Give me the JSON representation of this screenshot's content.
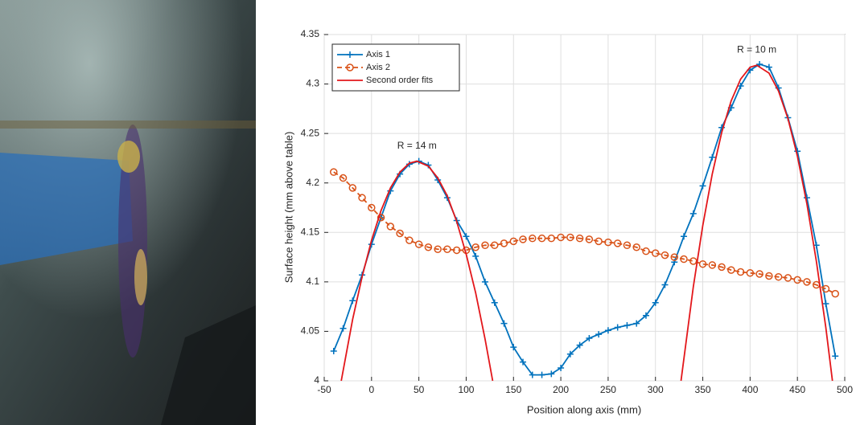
{
  "chart_data": {
    "type": "line",
    "xlabel": "Position along axis (mm)",
    "ylabel": "Surface height (mm above table)",
    "xlim": [
      -50,
      500
    ],
    "xticks": [
      -50,
      0,
      50,
      100,
      150,
      200,
      250,
      300,
      350,
      400,
      450,
      500
    ],
    "ylim": [
      4,
      4.35
    ],
    "yticks": [
      4,
      4.05,
      4.1,
      4.15,
      4.2,
      4.25,
      4.3,
      4.35
    ],
    "grid": true,
    "legend": "upper left",
    "annotations": [
      "R = 14 m",
      "R = 10 m"
    ],
    "series": [
      {
        "name": "Axis 1",
        "color": "#0072bd",
        "marker": "plus",
        "x": [
          -40,
          -30,
          -20,
          -10,
          0,
          10,
          20,
          30,
          40,
          50,
          60,
          70,
          80,
          90,
          100,
          110,
          120,
          130,
          140,
          150,
          160,
          170,
          180,
          190,
          200,
          210,
          220,
          230,
          240,
          250,
          260,
          270,
          280,
          290,
          300,
          310,
          320,
          330,
          340,
          350,
          360,
          370,
          380,
          390,
          400,
          410,
          420,
          430,
          440,
          450,
          460,
          470,
          480,
          490
        ],
        "values": [
          4.03,
          4.053,
          4.081,
          4.107,
          4.138,
          4.165,
          4.192,
          4.209,
          4.219,
          4.222,
          4.218,
          4.203,
          4.185,
          4.162,
          4.146,
          4.126,
          4.1,
          4.079,
          4.058,
          4.034,
          4.019,
          4.006,
          4.006,
          4.007,
          4.013,
          4.027,
          4.036,
          4.043,
          4.047,
          4.051,
          4.054,
          4.056,
          4.058,
          4.066,
          4.079,
          4.097,
          4.12,
          4.146,
          4.169,
          4.197,
          4.226,
          4.256,
          4.276,
          4.298,
          4.314,
          4.32,
          4.317,
          4.296,
          4.266,
          4.232,
          4.185,
          4.137,
          4.078,
          4.025
        ]
      },
      {
        "name": "Axis 2",
        "color": "#d95319",
        "marker": "circle",
        "dashed": true,
        "x": [
          -40,
          -30,
          -20,
          -10,
          0,
          10,
          20,
          30,
          40,
          50,
          60,
          70,
          80,
          90,
          100,
          110,
          120,
          130,
          140,
          150,
          160,
          170,
          180,
          190,
          200,
          210,
          220,
          230,
          240,
          250,
          260,
          270,
          280,
          290,
          300,
          310,
          320,
          330,
          340,
          350,
          360,
          370,
          380,
          390,
          400,
          410,
          420,
          430,
          440,
          450,
          460,
          470,
          480,
          490
        ],
        "values": [
          4.211,
          4.205,
          4.195,
          4.185,
          4.175,
          4.165,
          4.156,
          4.149,
          4.142,
          4.138,
          4.135,
          4.133,
          4.133,
          4.132,
          4.132,
          4.135,
          4.137,
          4.137,
          4.139,
          4.141,
          4.143,
          4.144,
          4.144,
          4.144,
          4.145,
          4.145,
          4.144,
          4.143,
          4.141,
          4.14,
          4.139,
          4.137,
          4.135,
          4.131,
          4.129,
          4.127,
          4.125,
          4.123,
          4.121,
          4.118,
          4.117,
          4.115,
          4.112,
          4.11,
          4.109,
          4.108,
          4.106,
          4.105,
          4.104,
          4.102,
          4.1,
          4.097,
          4.093,
          4.088
        ]
      },
      {
        "name": "Second order fits",
        "color": "#e3171b",
        "marker": "none",
        "x": [
          -32,
          -20,
          -10,
          0,
          10,
          20,
          30,
          40,
          48,
          60,
          70,
          80,
          90,
          100,
          110,
          120,
          128,
          null,
          327,
          340,
          350,
          360,
          370,
          380,
          390,
          400,
          407,
          420,
          430,
          440,
          450,
          460,
          470,
          480,
          487
        ],
        "values": [
          4.0,
          4.062,
          4.105,
          4.142,
          4.172,
          4.195,
          4.211,
          4.22,
          4.222,
          4.217,
          4.205,
          4.187,
          4.161,
          4.128,
          4.089,
          4.042,
          4.0,
          null,
          4.0,
          4.095,
          4.157,
          4.209,
          4.251,
          4.283,
          4.305,
          4.317,
          4.319,
          4.311,
          4.293,
          4.265,
          4.227,
          4.179,
          4.121,
          4.054,
          4.0
        ]
      }
    ]
  }
}
